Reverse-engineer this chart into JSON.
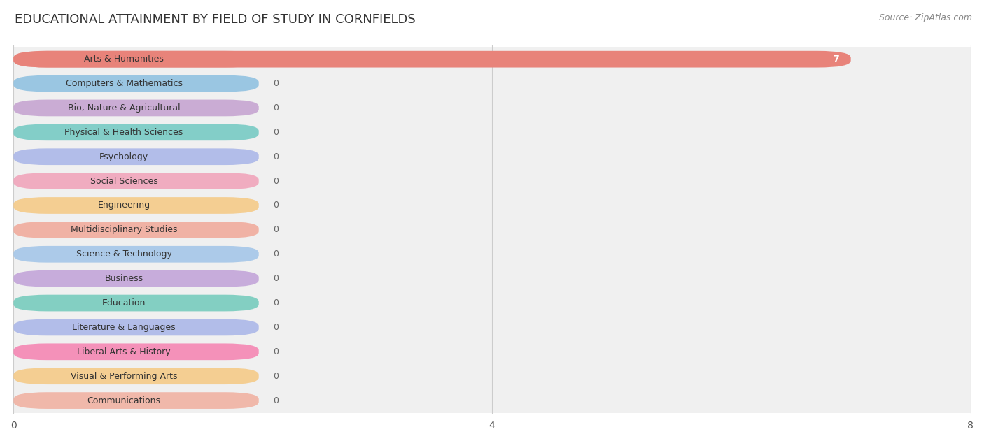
{
  "title": "EDUCATIONAL ATTAINMENT BY FIELD OF STUDY IN CORNFIELDS",
  "source": "Source: ZipAtlas.com",
  "categories": [
    "Arts & Humanities",
    "Computers & Mathematics",
    "Bio, Nature & Agricultural",
    "Physical & Health Sciences",
    "Psychology",
    "Social Sciences",
    "Engineering",
    "Multidisciplinary Studies",
    "Science & Technology",
    "Business",
    "Education",
    "Literature & Languages",
    "Liberal Arts & History",
    "Visual & Performing Arts",
    "Communications"
  ],
  "values": [
    7,
    0,
    0,
    0,
    0,
    0,
    0,
    0,
    0,
    0,
    0,
    0,
    0,
    0,
    0
  ],
  "bar_colors": [
    "#E8837A",
    "#8BBFE0",
    "#C4A0D0",
    "#70C8C2",
    "#A8B4E8",
    "#F0A0B8",
    "#F5C882",
    "#F0A898",
    "#A0C4E8",
    "#C0A0D8",
    "#70CABA",
    "#A8B4E8",
    "#F580B0",
    "#F5C882",
    "#F0AE9E"
  ],
  "xlim": [
    0,
    8
  ],
  "xticks": [
    0,
    4,
    8
  ],
  "background_color": "#ffffff",
  "row_bg_even": "#f5f5f5",
  "row_bg_odd": "#ebebeb",
  "title_fontsize": 13,
  "label_fontsize": 9,
  "value_fontsize": 9,
  "source_fontsize": 9
}
